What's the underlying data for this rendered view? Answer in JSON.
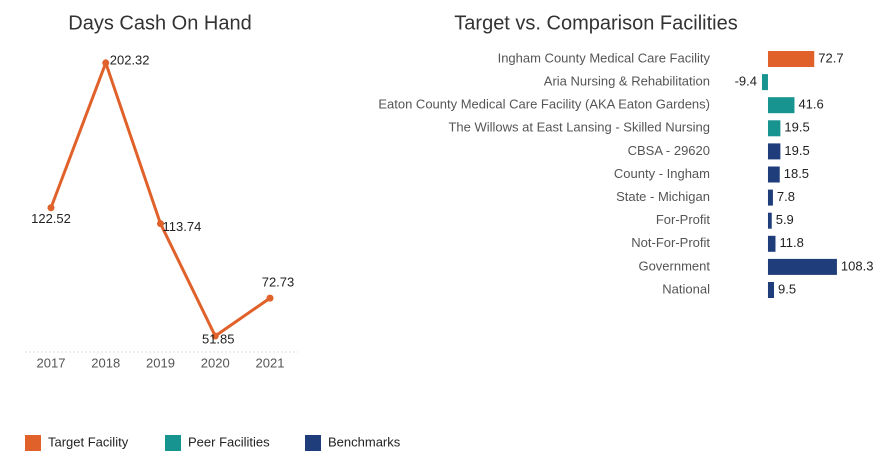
{
  "chart_data": [
    {
      "type": "line",
      "title": "Days Cash On Hand",
      "categories": [
        "2017",
        "2018",
        "2019",
        "2020",
        "2021"
      ],
      "values": [
        122.52,
        202.32,
        113.74,
        51.85,
        72.73
      ],
      "color": "#e0612a",
      "ylim": [
        40,
        210
      ]
    },
    {
      "type": "hbar",
      "title": "Target vs. Comparison Facilities",
      "categories": [
        "Ingham County Medical Care Facility",
        "Aria Nursing & Rehabilitation",
        "Eaton County Medical Care Facility (AKA Eaton Gardens)",
        "The Willows at East Lansing - Skilled Nursing",
        "CBSA - 29620",
        "County - Ingham",
        "State - Michigan",
        "For-Profit",
        "Not-For-Profit",
        "Government",
        "National"
      ],
      "series": [
        {
          "name": "Target Facility",
          "color": "#e0612a",
          "values": [
            72.7,
            null,
            null,
            null,
            null,
            null,
            null,
            null,
            null,
            null,
            null
          ]
        },
        {
          "name": "Peer Facilities",
          "color": "#17948f",
          "values": [
            null,
            -9.4,
            41.6,
            19.5,
            null,
            null,
            null,
            null,
            null,
            null,
            null
          ]
        },
        {
          "name": "Benchmarks",
          "color": "#1f3d7a",
          "values": [
            null,
            null,
            null,
            null,
            19.5,
            18.5,
            7.8,
            5.9,
            11.8,
            108.3,
            9.5
          ]
        }
      ],
      "xlim": [
        -10,
        110
      ],
      "legend": "bottom-left"
    }
  ]
}
